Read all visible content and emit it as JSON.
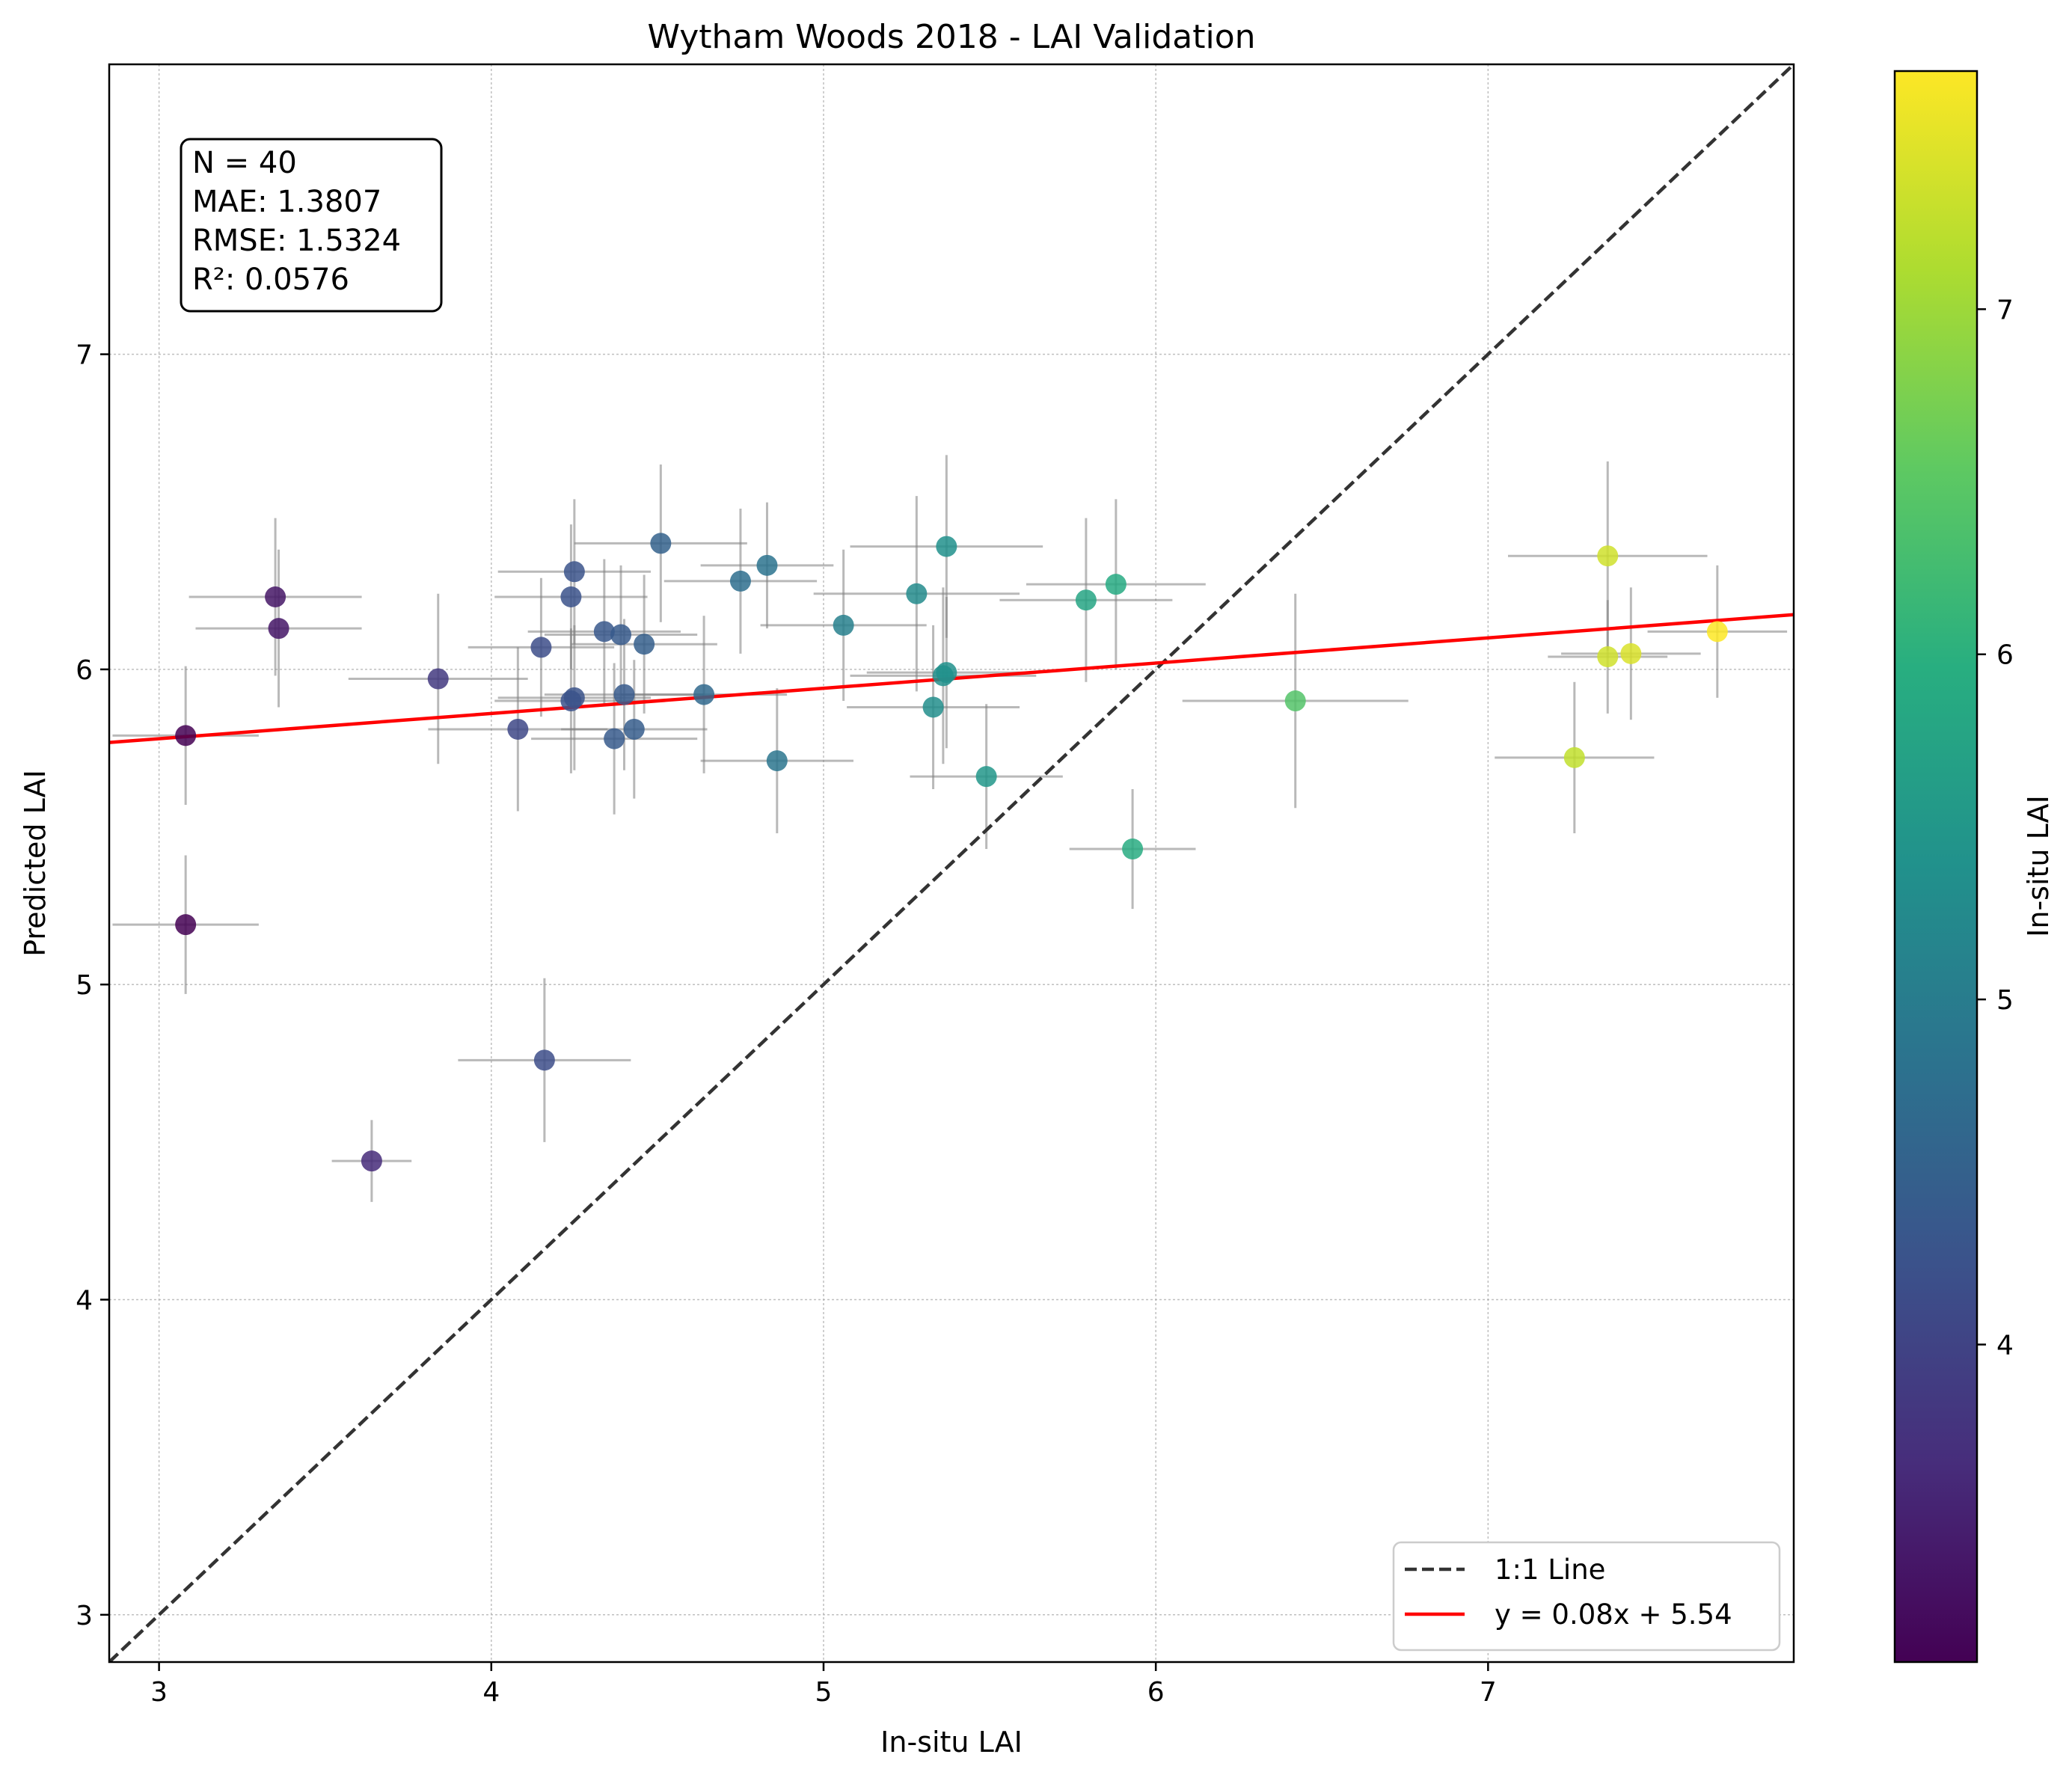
{
  "chart_data": {
    "type": "scatter",
    "title": "Wytham Woods 2018 - LAI Validation",
    "xlabel": "In-situ LAI",
    "ylabel": "Predicted LAI",
    "xlim": [
      2.85,
      7.92
    ],
    "ylim": [
      2.85,
      7.92
    ],
    "xticks": [
      3,
      4,
      5,
      6,
      7
    ],
    "yticks": [
      3,
      4,
      5,
      6,
      7
    ],
    "grid": true,
    "colormap": "viridis",
    "colorbar": {
      "label": "In-situ LAI",
      "range": [
        3.08,
        7.69
      ],
      "ticks": [
        4,
        5,
        6,
        7
      ]
    },
    "stats": [
      "N = 40",
      "MAE: 1.3807",
      "RMSE: 1.5324",
      "R²: 0.0576"
    ],
    "legend": {
      "placement": "lower-right",
      "entries": [
        {
          "label": "1:1 Line",
          "style": "dashed",
          "color": "#333333"
        },
        {
          "label": "y = 0.08x + 5.54",
          "style": "solid",
          "color": "#ff0000"
        }
      ]
    },
    "fit_line": {
      "slope": 0.08,
      "intercept": 5.54
    },
    "points": [
      {
        "x": 3.08,
        "y": 5.79,
        "xerr": 0.22,
        "yerr": 0.22
      },
      {
        "x": 3.08,
        "y": 5.19,
        "xerr": 0.22,
        "yerr": 0.22
      },
      {
        "x": 3.35,
        "y": 6.23,
        "xerr": 0.26,
        "yerr": 0.25
      },
      {
        "x": 3.36,
        "y": 6.13,
        "xerr": 0.25,
        "yerr": 0.25
      },
      {
        "x": 3.64,
        "y": 4.44,
        "xerr": 0.12,
        "yerr": 0.13
      },
      {
        "x": 3.84,
        "y": 5.97,
        "xerr": 0.27,
        "yerr": 0.27
      },
      {
        "x": 4.08,
        "y": 5.81,
        "xerr": 0.27,
        "yerr": 0.26
      },
      {
        "x": 4.15,
        "y": 6.07,
        "xerr": 0.22,
        "yerr": 0.22
      },
      {
        "x": 4.16,
        "y": 4.76,
        "xerr": 0.26,
        "yerr": 0.26
      },
      {
        "x": 4.24,
        "y": 6.23,
        "xerr": 0.23,
        "yerr": 0.23
      },
      {
        "x": 4.24,
        "y": 5.9,
        "xerr": 0.23,
        "yerr": 0.23
      },
      {
        "x": 4.25,
        "y": 6.31,
        "xerr": 0.23,
        "yerr": 0.23
      },
      {
        "x": 4.25,
        "y": 5.91,
        "xerr": 0.23,
        "yerr": 0.23
      },
      {
        "x": 4.34,
        "y": 6.12,
        "xerr": 0.23,
        "yerr": 0.23
      },
      {
        "x": 4.37,
        "y": 5.78,
        "xerr": 0.25,
        "yerr": 0.24
      },
      {
        "x": 4.39,
        "y": 6.11,
        "xerr": 0.23,
        "yerr": 0.22
      },
      {
        "x": 4.4,
        "y": 5.92,
        "xerr": 0.24,
        "yerr": 0.24
      },
      {
        "x": 4.43,
        "y": 5.81,
        "xerr": 0.22,
        "yerr": 0.22
      },
      {
        "x": 4.46,
        "y": 6.08,
        "xerr": 0.22,
        "yerr": 0.22
      },
      {
        "x": 4.51,
        "y": 6.4,
        "xerr": 0.26,
        "yerr": 0.25
      },
      {
        "x": 4.64,
        "y": 5.92,
        "xerr": 0.25,
        "yerr": 0.25
      },
      {
        "x": 4.75,
        "y": 6.28,
        "xerr": 0.23,
        "yerr": 0.23
      },
      {
        "x": 4.83,
        "y": 6.33,
        "xerr": 0.2,
        "yerr": 0.2
      },
      {
        "x": 4.86,
        "y": 5.71,
        "xerr": 0.23,
        "yerr": 0.23
      },
      {
        "x": 5.06,
        "y": 6.14,
        "xerr": 0.25,
        "yerr": 0.24
      },
      {
        "x": 5.28,
        "y": 6.24,
        "xerr": 0.31,
        "yerr": 0.31
      },
      {
        "x": 5.33,
        "y": 5.88,
        "xerr": 0.26,
        "yerr": 0.26
      },
      {
        "x": 5.36,
        "y": 5.98,
        "xerr": 0.28,
        "yerr": 0.28
      },
      {
        "x": 5.37,
        "y": 5.99,
        "xerr": 0.24,
        "yerr": 0.24
      },
      {
        "x": 5.37,
        "y": 6.39,
        "xerr": 0.29,
        "yerr": 0.29
      },
      {
        "x": 5.49,
        "y": 5.66,
        "xerr": 0.23,
        "yerr": 0.23
      },
      {
        "x": 5.79,
        "y": 6.22,
        "xerr": 0.26,
        "yerr": 0.26
      },
      {
        "x": 5.88,
        "y": 6.27,
        "xerr": 0.27,
        "yerr": 0.27
      },
      {
        "x": 5.93,
        "y": 5.43,
        "xerr": 0.19,
        "yerr": 0.19
      },
      {
        "x": 6.42,
        "y": 5.9,
        "xerr": 0.34,
        "yerr": 0.34
      },
      {
        "x": 7.26,
        "y": 5.72,
        "xerr": 0.24,
        "yerr": 0.24
      },
      {
        "x": 7.36,
        "y": 6.36,
        "xerr": 0.3,
        "yerr": 0.3
      },
      {
        "x": 7.36,
        "y": 6.04,
        "xerr": 0.18,
        "yerr": 0.18
      },
      {
        "x": 7.43,
        "y": 6.05,
        "xerr": 0.21,
        "yerr": 0.21
      },
      {
        "x": 7.69,
        "y": 6.12,
        "xerr": 0.21,
        "yerr": 0.21
      }
    ]
  }
}
